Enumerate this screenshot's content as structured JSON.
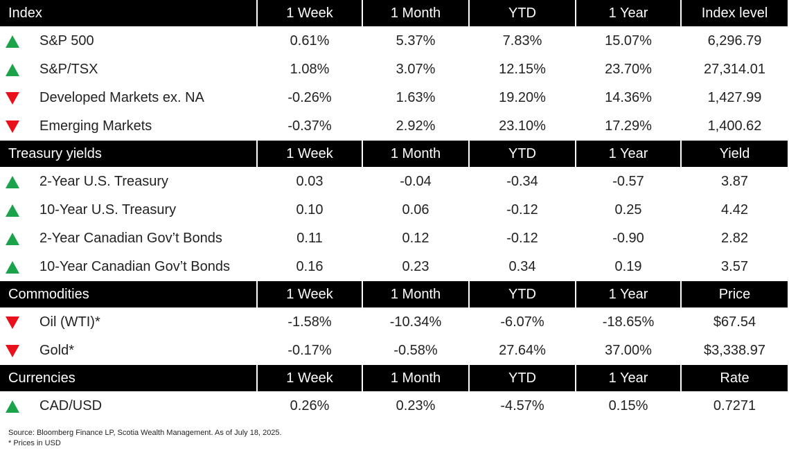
{
  "sections": [
    {
      "header": [
        "Index",
        "1 Week",
        "1 Month",
        "YTD",
        "1 Year",
        "Index level"
      ],
      "rows": [
        {
          "trend": "up",
          "cells": [
            "S&P 500",
            "0.61%",
            "5.37%",
            "7.83%",
            "15.07%",
            "6,296.79"
          ]
        },
        {
          "trend": "up",
          "cells": [
            "S&P/TSX",
            "1.08%",
            "3.07%",
            "12.15%",
            "23.70%",
            "27,314.01"
          ]
        },
        {
          "trend": "down",
          "cells": [
            "Developed Markets ex. NA",
            "-0.26%",
            "1.63%",
            "19.20%",
            "14.36%",
            "1,427.99"
          ]
        },
        {
          "trend": "down",
          "cells": [
            "Emerging Markets",
            "-0.37%",
            "2.92%",
            "23.10%",
            "17.29%",
            "1,400.62"
          ]
        }
      ]
    },
    {
      "header": [
        "Treasury yields",
        "1 Week",
        "1 Month",
        "YTD",
        "1 Year",
        "Yield"
      ],
      "rows": [
        {
          "trend": "up",
          "cells": [
            "2-Year U.S. Treasury",
            "0.03",
            "-0.04",
            "-0.34",
            "-0.57",
            "3.87"
          ]
        },
        {
          "trend": "up",
          "cells": [
            "10-Year U.S. Treasury",
            "0.10",
            "0.06",
            "-0.12",
            "0.25",
            "4.42"
          ]
        },
        {
          "trend": "up",
          "cells": [
            "2-Year Canadian Gov’t Bonds",
            "0.11",
            "0.12",
            "-0.12",
            "-0.90",
            "2.82"
          ]
        },
        {
          "trend": "up",
          "cells": [
            "10-Year Canadian Gov’t Bonds",
            "0.16",
            "0.23",
            "0.34",
            "0.19",
            "3.57"
          ]
        }
      ]
    },
    {
      "header": [
        "Commodities",
        "1 Week",
        "1 Month",
        "YTD",
        "1 Year",
        "Price"
      ],
      "rows": [
        {
          "trend": "down",
          "cells": [
            "Oil (WTI)*",
            "-1.58%",
            "-10.34%",
            "-6.07%",
            "-18.65%",
            "$67.54"
          ]
        },
        {
          "trend": "down",
          "cells": [
            "Gold*",
            "-0.17%",
            "-0.58%",
            "27.64%",
            "37.00%",
            "$3,338.97"
          ]
        }
      ]
    },
    {
      "header": [
        "Currencies",
        "1 Week",
        "1 Month",
        "YTD",
        "1 Year",
        "Rate"
      ],
      "rows": [
        {
          "trend": "up",
          "cells": [
            "CAD/USD",
            "0.26%",
            "0.23%",
            "-4.57%",
            "0.15%",
            "0.7271"
          ]
        }
      ]
    }
  ],
  "footer": {
    "source": "Source: Bloomberg Finance LP, Scotia Wealth Management. As of July 18, 2025.",
    "note": "* Prices in USD"
  }
}
